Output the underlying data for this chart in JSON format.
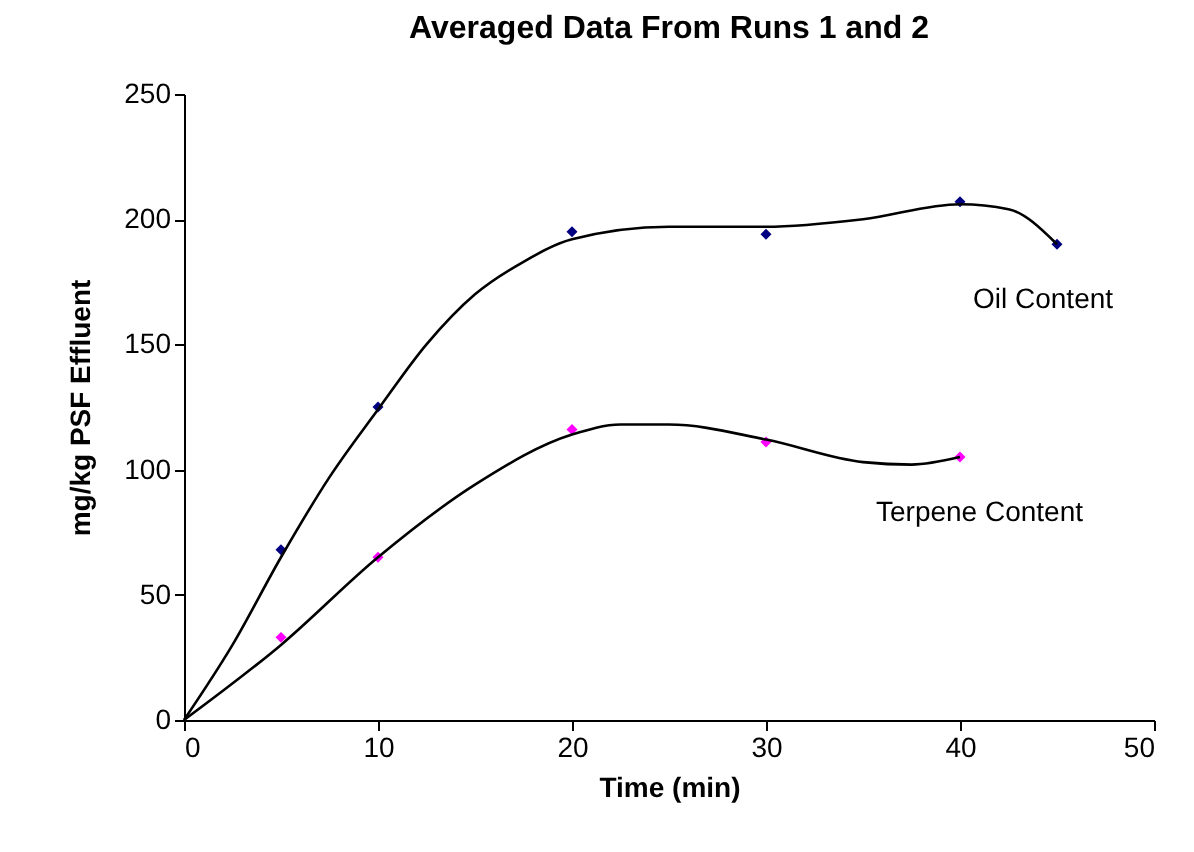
{
  "chart_data": {
    "type": "scatter",
    "title": "Averaged Data From Runs 1 and 2",
    "xlabel": "Time (min)",
    "ylabel": "mg/kg PSF Effluent",
    "xlim": [
      0,
      50
    ],
    "xticks": [
      0,
      10,
      20,
      30,
      40,
      50
    ],
    "ylim": [
      0,
      250
    ],
    "yticks": [
      0,
      50,
      100,
      150,
      200,
      250
    ],
    "grid": false,
    "series": [
      {
        "marker": "diamond",
        "color": "#000080",
        "x": [
          5,
          10,
          20,
          30,
          40,
          45
        ],
        "values": [
          68,
          125,
          195,
          194,
          207,
          190
        ]
      },
      {
        "marker": "diamond",
        "color": "#ff00ff",
        "x": [
          5,
          10,
          20,
          30,
          40
        ],
        "values": [
          33,
          65,
          116,
          111,
          105
        ]
      },
      {
        "type": "line",
        "marker": "none",
        "color": "#000000",
        "line_style": "solid",
        "x": [
          0,
          2.5,
          5,
          7.5,
          10,
          12.5,
          15,
          17.5,
          20,
          25,
          30,
          35,
          40,
          42.5,
          45
        ],
        "values": [
          0,
          30,
          65,
          97,
          124,
          150,
          170,
          183,
          192,
          197,
          197,
          200,
          206,
          204,
          190
        ]
      },
      {
        "type": "line",
        "marker": "none",
        "color": "#000000",
        "line_style": "solid",
        "x": [
          0,
          5,
          10,
          15,
          20,
          22.5,
          25,
          30,
          35,
          37.5,
          40
        ],
        "values": [
          0,
          30,
          65,
          94,
          114,
          118,
          118,
          112,
          103,
          102,
          105
        ]
      }
    ],
    "annotations": [
      "Oil Content",
      "Terpene Content"
    ]
  }
}
